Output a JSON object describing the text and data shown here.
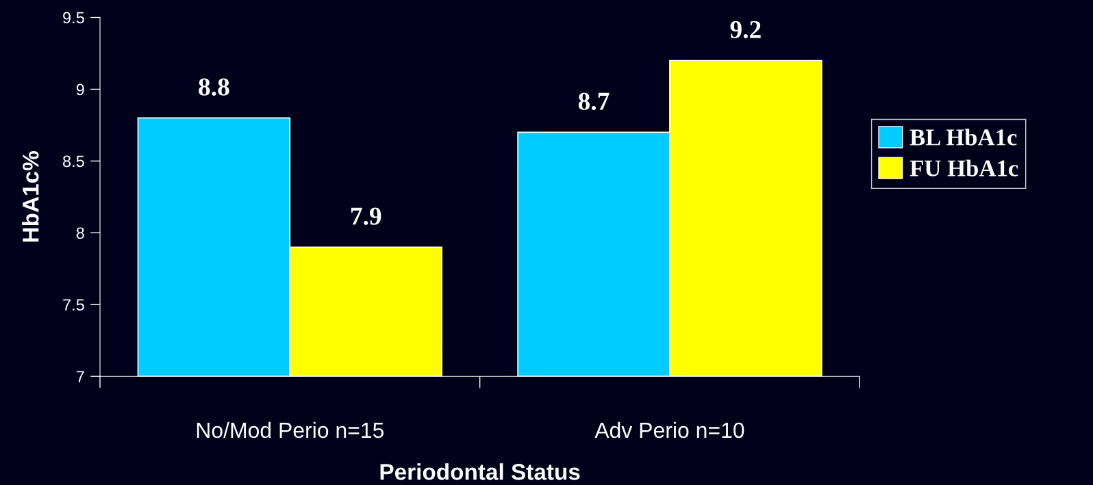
{
  "chart_data": {
    "type": "bar",
    "xlabel": "Periodontal Status",
    "ylabel": "HbA1c%",
    "categories": [
      "No/Mod Perio n=15",
      "Adv Perio n=10"
    ],
    "series": [
      {
        "name": "BL HbA1c",
        "color": "#00ccff",
        "values": [
          8.8,
          8.7
        ]
      },
      {
        "name": "FU HbA1c",
        "color": "#ffff00",
        "values": [
          7.9,
          9.2
        ]
      }
    ],
    "ylim": [
      7,
      9.5
    ],
    "yticks": [
      7,
      7.5,
      8,
      8.5,
      9,
      9.5
    ],
    "data_labels": true,
    "grid": false,
    "legend": "right"
  }
}
